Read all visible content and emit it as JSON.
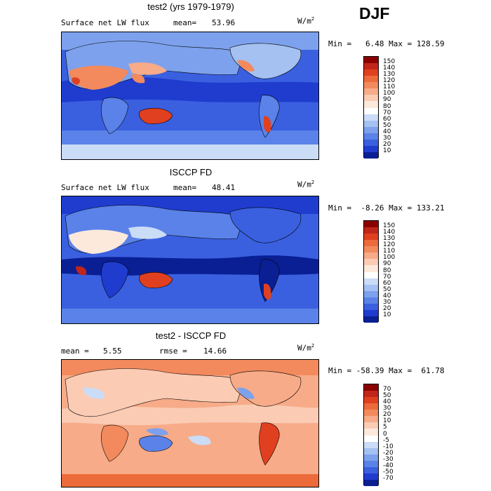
{
  "season": "DJF",
  "panels": [
    {
      "title": "test2 (yrs 1979-1979)",
      "left_label": "Surface net LW flux",
      "stat_label": "mean=",
      "stat_value": "53.96",
      "units": "W/m",
      "units_exp": "2",
      "minmax": "Min =   6.48 Max = 128.59",
      "colorbar": {
        "labels": [
          "150",
          "140",
          "130",
          "120",
          "110",
          "100",
          "90",
          "80",
          "70",
          "60",
          "50",
          "40",
          "30",
          "20",
          "10"
        ],
        "colors": [
          "#8b0000",
          "#c1261a",
          "#e0401f",
          "#ed6a3a",
          "#f28a5e",
          "#f7ab88",
          "#fbcbb4",
          "#fde9dc",
          "#ffffff",
          "#cbdcf6",
          "#a5c1f2",
          "#7da1ec",
          "#5a82e8",
          "#3a60e0",
          "#1f3ccf",
          "#0a1f94"
        ]
      }
    },
    {
      "title": "ISCCP FD",
      "left_label": "Surface net LW flux",
      "stat_label": "mean=",
      "stat_value": "48.41",
      "units": "W/m",
      "units_exp": "2",
      "minmax": "Min =  -8.26 Max = 133.21",
      "colorbar": {
        "labels": [
          "150",
          "140",
          "130",
          "120",
          "110",
          "100",
          "90",
          "80",
          "70",
          "60",
          "50",
          "40",
          "30",
          "20",
          "10"
        ],
        "colors": [
          "#8b0000",
          "#c1261a",
          "#e0401f",
          "#ed6a3a",
          "#f28a5e",
          "#f7ab88",
          "#fbcbb4",
          "#fde9dc",
          "#ffffff",
          "#cbdcf6",
          "#a5c1f2",
          "#7da1ec",
          "#5a82e8",
          "#3a60e0",
          "#1f3ccf",
          "#0a1f94"
        ]
      }
    },
    {
      "title": "test2 - ISCCP FD",
      "left_label": "mean =",
      "left_value": "5.55",
      "stat_label": "rmse =",
      "stat_value": "14.66",
      "units": "W/m",
      "units_exp": "2",
      "minmax": "Min = -58.39 Max =  61.78",
      "colorbar": {
        "labels": [
          "70",
          "50",
          "40",
          "30",
          "20",
          "10",
          "5",
          "0",
          "-5",
          "-10",
          "-20",
          "-30",
          "-40",
          "-50",
          "-70"
        ],
        "colors": [
          "#8b0000",
          "#c1261a",
          "#e0401f",
          "#ed6a3a",
          "#f28a5e",
          "#f7ab88",
          "#fbcbb4",
          "#fde9dc",
          "#ffffff",
          "#cbdcf6",
          "#a5c1f2",
          "#7da1ec",
          "#5a82e8",
          "#3a60e0",
          "#1f3ccf",
          "#0a1f94"
        ]
      }
    }
  ]
}
